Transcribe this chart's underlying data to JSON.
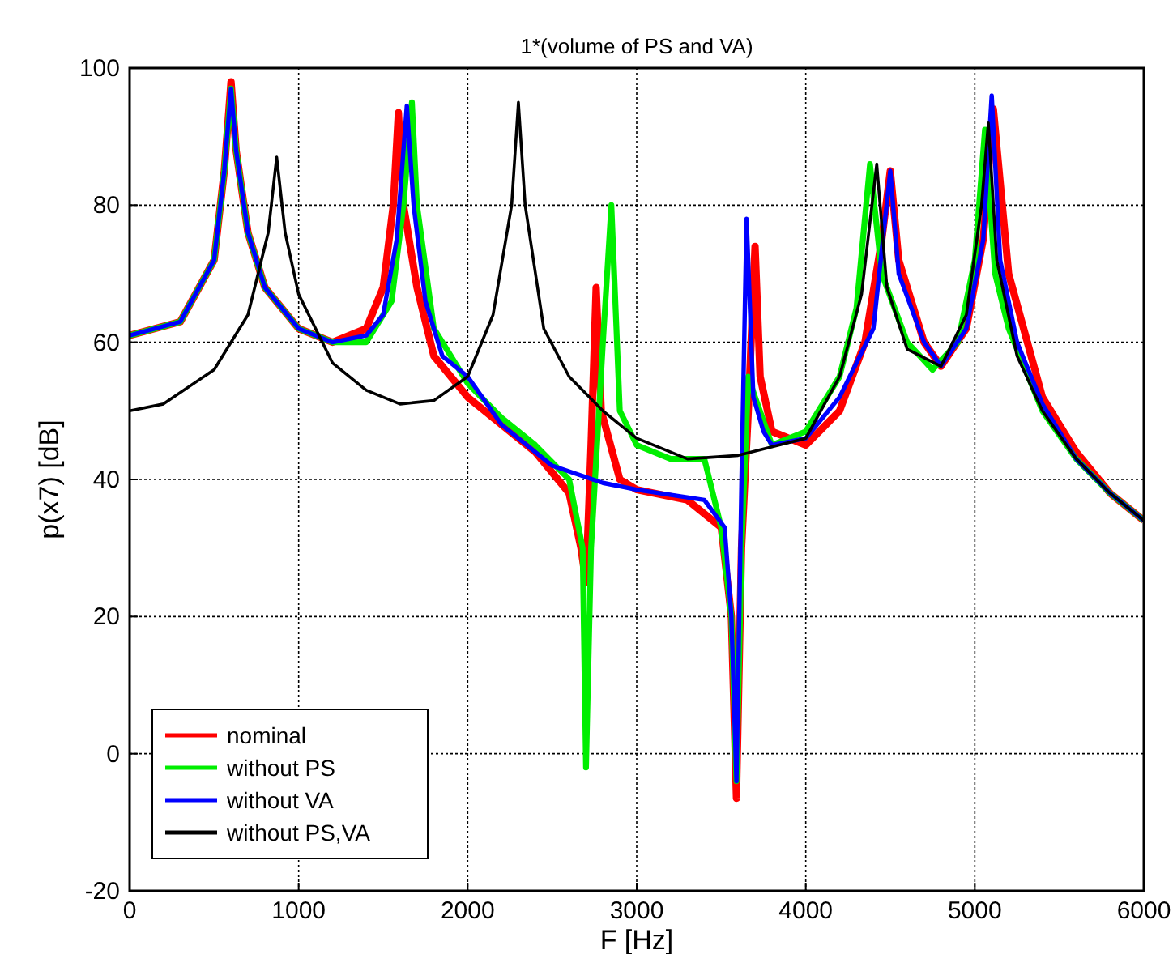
{
  "chart_data": {
    "type": "line",
    "title": "1*(volume of PS and VA)",
    "xlabel": "F [Hz]",
    "ylabel": "p(x7) [dB]",
    "xlim": [
      0,
      6000
    ],
    "ylim": [
      -20,
      100
    ],
    "xticks": [
      0,
      1000,
      2000,
      3000,
      4000,
      5000,
      6000
    ],
    "yticks": [
      -20,
      0,
      20,
      40,
      60,
      80,
      100
    ],
    "grid": true,
    "legend": "bottom left",
    "line_style": "solid",
    "series": [
      {
        "name": "nominal",
        "color": "#ff0000",
        "x": [
          0,
          300,
          500,
          560,
          600,
          630,
          700,
          800,
          1000,
          1200,
          1400,
          1500,
          1560,
          1590,
          1620,
          1700,
          1800,
          2000,
          2200,
          2400,
          2600,
          2670,
          2700,
          2730,
          2760,
          2790,
          2900,
          3000,
          3300,
          3500,
          3560,
          3590,
          3620,
          3660,
          3700,
          3730,
          3800,
          4000,
          4200,
          4350,
          4450,
          4500,
          4550,
          4700,
          4800,
          4950,
          5050,
          5110,
          5200,
          5400,
          5600,
          5800,
          6000
        ],
        "values": [
          61,
          63,
          72,
          85,
          98,
          88,
          76,
          68,
          62,
          60,
          62,
          68,
          80,
          93.5,
          80,
          68,
          58,
          52,
          48,
          44,
          38,
          30,
          25,
          45,
          68,
          50,
          40,
          38.5,
          37,
          33,
          20,
          -6.5,
          30,
          50,
          74,
          55,
          47,
          45,
          50,
          60,
          75,
          85,
          72,
          60,
          56.5,
          62,
          75,
          94,
          70,
          52,
          44,
          38,
          34
        ]
      },
      {
        "name": "without PS",
        "color": "#00ee00",
        "x": [
          0,
          300,
          500,
          560,
          600,
          630,
          700,
          800,
          1000,
          1200,
          1400,
          1550,
          1620,
          1670,
          1700,
          1800,
          2000,
          2200,
          2400,
          2600,
          2680,
          2700,
          2730,
          2800,
          2850,
          2900,
          3000,
          3200,
          3400,
          3500,
          3560,
          3590,
          3620,
          3660,
          3700,
          3800,
          4000,
          4200,
          4300,
          4380,
          4450,
          4600,
          4750,
          4900,
          5000,
          5060,
          5120,
          5200,
          5400,
          5600,
          5800,
          6000
        ],
        "values": [
          61,
          63,
          72,
          85,
          97,
          88,
          76,
          68,
          62,
          60,
          60,
          66,
          80,
          95,
          80,
          62,
          54,
          49,
          45,
          40,
          30,
          -2,
          30,
          60,
          80,
          50,
          45,
          43,
          43,
          33,
          20,
          -4,
          30,
          55,
          52,
          45,
          47,
          55,
          65,
          86,
          70,
          60,
          56,
          60,
          72,
          91,
          70,
          62,
          50,
          43,
          38,
          34
        ]
      },
      {
        "name": "without VA",
        "color": "#0000ff",
        "x": [
          0,
          300,
          500,
          560,
          600,
          630,
          700,
          800,
          1000,
          1200,
          1400,
          1500,
          1580,
          1640,
          1680,
          1750,
          1850,
          2000,
          2200,
          2500,
          2800,
          3000,
          3400,
          3520,
          3560,
          3590,
          3620,
          3650,
          3690,
          3750,
          3800,
          4000,
          4200,
          4400,
          4500,
          4550,
          4700,
          4800,
          4950,
          5050,
          5100,
          5150,
          5250,
          5400,
          5600,
          5800,
          6000
        ],
        "values": [
          61,
          63,
          72,
          85,
          97,
          88,
          76,
          68,
          62,
          60,
          61,
          64,
          75,
          94.5,
          80,
          66,
          58,
          55,
          48,
          42,
          39.5,
          38.5,
          37,
          33,
          20,
          -4,
          40,
          78,
          52,
          47,
          45,
          46,
          52,
          62,
          85,
          70,
          60,
          56.5,
          62,
          75,
          96,
          72,
          60,
          51,
          43,
          38,
          34
        ]
      },
      {
        "name": "without PS,VA",
        "color": "#000000",
        "x": [
          0,
          200,
          500,
          700,
          820,
          870,
          920,
          1000,
          1200,
          1400,
          1600,
          1800,
          2000,
          2150,
          2260,
          2300,
          2340,
          2450,
          2600,
          2800,
          3000,
          3300,
          3600,
          4000,
          4200,
          4330,
          4420,
          4480,
          4600,
          4800,
          4950,
          5040,
          5080,
          5130,
          5250,
          5400,
          5600,
          5800,
          6000
        ],
        "values": [
          50,
          51,
          56,
          64,
          76,
          87,
          76,
          67,
          57,
          53,
          51,
          51.5,
          55,
          64,
          80,
          95,
          80,
          62,
          55,
          50,
          46,
          43,
          43.5,
          46,
          55,
          67,
          86,
          68,
          59,
          56.5,
          64,
          80,
          92,
          72,
          58,
          50,
          43,
          38,
          34
        ]
      }
    ]
  }
}
